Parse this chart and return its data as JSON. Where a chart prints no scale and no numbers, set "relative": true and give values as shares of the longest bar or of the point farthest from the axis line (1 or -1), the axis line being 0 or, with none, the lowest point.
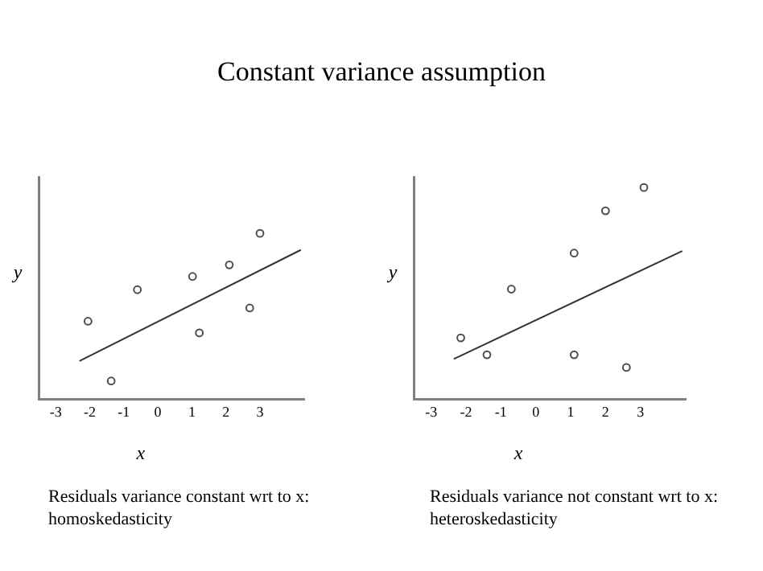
{
  "chart_data": [
    {
      "type": "scatter",
      "title": "Constant variance assumption",
      "relative": true,
      "xlabel": "x",
      "ylabel": "y",
      "xlim": [
        -3.5,
        4.3
      ],
      "xticks": [
        -3,
        -2,
        -1,
        0,
        1,
        2,
        3
      ],
      "grid": false,
      "marker": "circle",
      "annotations": [
        "Residuals variance constant wrt to x: homoskedasticity"
      ],
      "series": [
        {
          "color": "#4d4d4d",
          "x": [
            -2.05,
            -1.37,
            -0.6,
            1.02,
            1.22,
            2.1,
            2.7,
            3.0
          ],
          "values": [
            0.47,
            0.11,
            0.66,
            0.74,
            0.4,
            0.81,
            0.55,
            1.0
          ]
        },
        {
          "type": "line",
          "color": "#333333",
          "marker": "none",
          "x": [
            -2.3,
            4.2
          ],
          "values": [
            0.23,
            0.9
          ]
        }
      ]
    },
    {
      "type": "scatter",
      "relative": true,
      "xlabel": "x",
      "ylabel": "y",
      "xlim": [
        -3.5,
        4.3
      ],
      "xticks": [
        -3,
        -2,
        -1,
        0,
        1,
        2,
        3
      ],
      "grid": false,
      "marker": "circle",
      "annotations": [
        "Residuals variance not constant wrt to x: heteroskedasticity"
      ],
      "series": [
        {
          "color": "#4d4d4d",
          "x": [
            -2.15,
            -1.4,
            -0.7,
            1.1,
            1.1,
            2.0,
            2.6,
            3.1
          ],
          "values": [
            0.29,
            0.21,
            0.52,
            0.69,
            0.21,
            0.89,
            0.15,
            1.0
          ]
        },
        {
          "type": "line",
          "color": "#333333",
          "marker": "none",
          "x": [
            -2.35,
            4.2
          ],
          "values": [
            0.19,
            0.7
          ]
        }
      ]
    }
  ]
}
